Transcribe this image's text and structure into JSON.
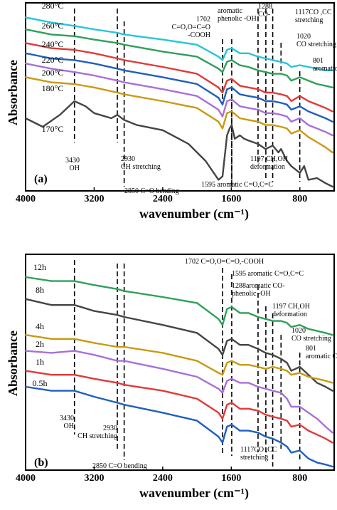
{
  "chart_data": [
    {
      "type": "line",
      "panel_label": "(a)",
      "xlabel": "wavenumber (cm⁻¹)",
      "ylabel": "Absorbance",
      "xlim": [
        4000,
        400
      ],
      "xticks": [
        "4000",
        "3200",
        "2400",
        "1600",
        "800"
      ],
      "tick_values": [
        4000,
        3200,
        2400,
        1600,
        800
      ],
      "series": [
        {
          "name": "280°C",
          "color": "#26c6da",
          "x": [
            4000,
            3700,
            3430,
            3200,
            2930,
            2850,
            2400,
            2000,
            1750,
            1702,
            1650,
            1595,
            1500,
            1400,
            1288,
            1200,
            1117,
            1020,
            950,
            900,
            801,
            700,
            600,
            500,
            420
          ],
          "y": [
            0.99,
            0.96,
            0.94,
            0.92,
            0.9,
            0.89,
            0.86,
            0.83,
            0.76,
            0.74,
            0.8,
            0.81,
            0.78,
            0.78,
            0.76,
            0.75,
            0.74,
            0.73,
            0.72,
            0.7,
            0.71,
            0.7,
            0.69,
            0.68,
            0.68
          ]
        },
        {
          "name": "260°C",
          "color": "#2ea05a",
          "x": [
            4000,
            3700,
            3430,
            3200,
            2930,
            2850,
            2400,
            2000,
            1750,
            1702,
            1650,
            1595,
            1500,
            1400,
            1288,
            1200,
            1117,
            1020,
            950,
            900,
            801,
            700,
            600,
            500,
            420
          ],
          "y": [
            0.92,
            0.89,
            0.88,
            0.86,
            0.84,
            0.83,
            0.79,
            0.76,
            0.69,
            0.67,
            0.73,
            0.74,
            0.71,
            0.7,
            0.68,
            0.67,
            0.66,
            0.66,
            0.65,
            0.62,
            0.64,
            0.62,
            0.6,
            0.59,
            0.58
          ]
        },
        {
          "name": "240°C",
          "color": "#e03a3a",
          "x": [
            4000,
            3700,
            3430,
            3200,
            2930,
            2850,
            2400,
            2000,
            1750,
            1702,
            1650,
            1595,
            1500,
            1400,
            1288,
            1200,
            1117,
            1020,
            950,
            900,
            801,
            700,
            600,
            500,
            420
          ],
          "y": [
            0.84,
            0.81,
            0.8,
            0.78,
            0.75,
            0.74,
            0.7,
            0.66,
            0.58,
            0.55,
            0.62,
            0.63,
            0.59,
            0.58,
            0.57,
            0.55,
            0.55,
            0.54,
            0.53,
            0.5,
            0.53,
            0.5,
            0.48,
            0.46,
            0.44
          ]
        },
        {
          "name": "220°C",
          "color": "#1f5fbf",
          "x": [
            4000,
            3700,
            3430,
            3200,
            2930,
            2850,
            2400,
            2000,
            1750,
            1702,
            1650,
            1595,
            1500,
            1400,
            1288,
            1200,
            1117,
            1020,
            950,
            900,
            801,
            700,
            600,
            500,
            420
          ],
          "y": [
            0.78,
            0.75,
            0.74,
            0.72,
            0.69,
            0.68,
            0.64,
            0.6,
            0.52,
            0.48,
            0.57,
            0.58,
            0.54,
            0.53,
            0.52,
            0.5,
            0.5,
            0.49,
            0.48,
            0.45,
            0.47,
            0.44,
            0.42,
            0.4,
            0.38
          ]
        },
        {
          "name": "200°C",
          "color": "#a870d8",
          "x": [
            4000,
            3700,
            3430,
            3200,
            2930,
            2850,
            2400,
            2000,
            1750,
            1702,
            1650,
            1595,
            1500,
            1400,
            1288,
            1200,
            1117,
            1020,
            950,
            900,
            801,
            700,
            600,
            500,
            420
          ],
          "y": [
            0.72,
            0.69,
            0.67,
            0.65,
            0.62,
            0.61,
            0.57,
            0.53,
            0.45,
            0.41,
            0.5,
            0.51,
            0.47,
            0.46,
            0.45,
            0.43,
            0.43,
            0.42,
            0.41,
            0.38,
            0.4,
            0.36,
            0.34,
            0.32,
            0.3
          ]
        },
        {
          "name": "180°C",
          "color": "#c99a10",
          "x": [
            4000,
            3700,
            3430,
            3200,
            2930,
            2850,
            2400,
            2000,
            1750,
            1702,
            1650,
            1595,
            1500,
            1400,
            1288,
            1200,
            1117,
            1020,
            950,
            900,
            801,
            700,
            600,
            500,
            420
          ],
          "y": [
            0.64,
            0.61,
            0.6,
            0.58,
            0.55,
            0.54,
            0.5,
            0.46,
            0.38,
            0.34,
            0.43,
            0.44,
            0.4,
            0.39,
            0.38,
            0.36,
            0.36,
            0.35,
            0.34,
            0.31,
            0.33,
            0.29,
            0.26,
            0.23,
            0.2
          ]
        },
        {
          "name": "170°C",
          "color": "#444444",
          "x": [
            4000,
            3800,
            3600,
            3430,
            3300,
            3200,
            3000,
            2930,
            2850,
            2700,
            2400,
            2100,
            1900,
            1750,
            1702,
            1650,
            1620,
            1595,
            1560,
            1500,
            1450,
            1400,
            1288,
            1200,
            1117,
            1050,
            1020,
            950,
            900,
            801,
            750,
            700,
            600,
            500,
            420
          ],
          "y": [
            0.4,
            0.35,
            0.42,
            0.5,
            0.47,
            0.43,
            0.4,
            0.42,
            0.39,
            0.36,
            0.33,
            0.25,
            0.15,
            0.04,
            0.06,
            0.3,
            0.34,
            0.36,
            0.28,
            0.3,
            0.28,
            0.27,
            0.25,
            0.22,
            0.24,
            0.2,
            0.22,
            0.15,
            0.12,
            0.08,
            0.12,
            0.04,
            0.05,
            0.02,
            0.0
          ]
        }
      ],
      "annotations": [
        {
          "lines": [
            "3430",
            "OH"
          ],
          "x": 3430
        },
        {
          "lines": [
            "2930",
            "CH stretching"
          ],
          "x": 2930
        },
        {
          "lines": [
            "2850 C=O bending"
          ],
          "x": 2850
        },
        {
          "lines": [
            "1702",
            "C=O,O=C=O",
            "-COOH"
          ],
          "x": 1702
        },
        {
          "lines": [
            "aromatic",
            "phenolic -OH"
          ],
          "x": 1595
        },
        {
          "lines": [
            "1288",
            "CO-"
          ],
          "x": 1288
        },
        {
          "lines": [
            "1117CO ,CC",
            "stretching"
          ],
          "x": 1117
        },
        {
          "lines": [
            "1020",
            "CO stretching"
          ],
          "x": 1020
        },
        {
          "lines": [
            "801",
            "aromatic CH"
          ],
          "x": 801
        },
        {
          "lines": [
            "1197 CH,OH",
            "deformation"
          ],
          "x": 1197
        },
        {
          "lines": [
            "1595 aromatic C=O,C=C"
          ],
          "x": 1595
        }
      ]
    },
    {
      "type": "line",
      "panel_label": "(b)",
      "xlabel": "wavenumber (cm⁻¹)",
      "ylabel": "Absorbance",
      "xlim": [
        4000,
        400
      ],
      "xticks": [
        "4000",
        "3200",
        "2400",
        "1600",
        "800"
      ],
      "tick_values": [
        4000,
        3200,
        2400,
        1600,
        800
      ],
      "series": [
        {
          "name": "12h",
          "color": "#2ea05a",
          "x": [
            4000,
            3700,
            3430,
            3200,
            2930,
            2850,
            2400,
            2000,
            1750,
            1702,
            1650,
            1595,
            1500,
            1400,
            1288,
            1200,
            1117,
            1020,
            950,
            900,
            801,
            700,
            600,
            500,
            420
          ],
          "y": [
            0.95,
            0.93,
            0.93,
            0.91,
            0.89,
            0.88,
            0.85,
            0.82,
            0.74,
            0.71,
            0.79,
            0.8,
            0.77,
            0.77,
            0.75,
            0.74,
            0.73,
            0.73,
            0.72,
            0.7,
            0.71,
            0.69,
            0.68,
            0.67,
            0.66
          ]
        },
        {
          "name": "8h",
          "color": "#444444",
          "x": [
            4000,
            3700,
            3430,
            3200,
            2930,
            2850,
            2400,
            2000,
            1750,
            1702,
            1650,
            1595,
            1500,
            1400,
            1288,
            1200,
            1117,
            1020,
            950,
            900,
            801,
            700,
            600,
            500,
            420
          ],
          "y": [
            0.84,
            0.81,
            0.81,
            0.78,
            0.76,
            0.75,
            0.71,
            0.67,
            0.59,
            0.56,
            0.63,
            0.64,
            0.61,
            0.61,
            0.59,
            0.57,
            0.56,
            0.54,
            0.52,
            0.48,
            0.5,
            0.46,
            0.42,
            0.4,
            0.38
          ]
        },
        {
          "name": "4h",
          "color": "#c99a10",
          "x": [
            4000,
            3700,
            3430,
            3200,
            2930,
            2850,
            2400,
            2000,
            1750,
            1702,
            1650,
            1595,
            1500,
            1400,
            1288,
            1200,
            1117,
            1020,
            950,
            900,
            801,
            700,
            600,
            500,
            420
          ],
          "y": [
            0.66,
            0.64,
            0.64,
            0.62,
            0.6,
            0.6,
            0.57,
            0.53,
            0.47,
            0.46,
            0.52,
            0.53,
            0.51,
            0.51,
            0.5,
            0.49,
            0.5,
            0.49,
            0.48,
            0.46,
            0.47,
            0.45,
            0.44,
            0.43,
            0.42
          ]
        },
        {
          "name": "2h",
          "color": "#a870d8",
          "x": [
            4000,
            3700,
            3430,
            3200,
            2930,
            2850,
            2400,
            2000,
            1750,
            1702,
            1650,
            1595,
            1500,
            1400,
            1288,
            1200,
            1117,
            1020,
            950,
            900,
            801,
            700,
            600,
            500,
            420
          ],
          "y": [
            0.58,
            0.57,
            0.58,
            0.56,
            0.53,
            0.53,
            0.49,
            0.45,
            0.39,
            0.37,
            0.43,
            0.44,
            0.42,
            0.42,
            0.4,
            0.39,
            0.38,
            0.37,
            0.34,
            0.3,
            0.3,
            0.27,
            0.24,
            0.2,
            0.17
          ]
        },
        {
          "name": "1h",
          "color": "#e03a3a",
          "x": [
            4000,
            3700,
            3430,
            3200,
            2930,
            2850,
            2400,
            2000,
            1750,
            1702,
            1650,
            1595,
            1500,
            1400,
            1288,
            1200,
            1117,
            1020,
            950,
            900,
            801,
            700,
            600,
            500,
            420
          ],
          "y": [
            0.48,
            0.46,
            0.46,
            0.44,
            0.42,
            0.41,
            0.38,
            0.34,
            0.27,
            0.24,
            0.31,
            0.32,
            0.29,
            0.29,
            0.28,
            0.26,
            0.25,
            0.24,
            0.23,
            0.2,
            0.21,
            0.18,
            0.16,
            0.14,
            0.12
          ]
        },
        {
          "name": "0.5h",
          "color": "#1f5fbf",
          "x": [
            4000,
            3700,
            3430,
            3200,
            2930,
            2850,
            2400,
            2000,
            1750,
            1702,
            1650,
            1595,
            1500,
            1400,
            1288,
            1200,
            1117,
            1020,
            950,
            900,
            801,
            700,
            600,
            500,
            420
          ],
          "y": [
            0.4,
            0.38,
            0.38,
            0.35,
            0.32,
            0.31,
            0.27,
            0.23,
            0.15,
            0.12,
            0.2,
            0.21,
            0.18,
            0.18,
            0.17,
            0.15,
            0.14,
            0.12,
            0.1,
            0.07,
            0.08,
            0.04,
            0.02,
            0.01,
            0.0
          ]
        }
      ],
      "annotations": [
        {
          "lines": [
            "3430",
            "OH"
          ],
          "x": 3430
        },
        {
          "lines": [
            "2930",
            "CH stretching"
          ],
          "x": 2930
        },
        {
          "lines": [
            "2850 C=O bending"
          ],
          "x": 2850
        },
        {
          "lines": [
            "1702 C=O,O=C=O,-COOH"
          ],
          "x": 1702
        },
        {
          "lines": [
            "1595 aromatic C=O,C=C"
          ],
          "x": 1595
        },
        {
          "lines": [
            "1288aromatic CO-",
            "phenolic -OH"
          ],
          "x": 1288
        },
        {
          "lines": [
            "1197 CH,OH",
            "deformation"
          ],
          "x": 1197
        },
        {
          "lines": [
            "1020",
            "CO stretching"
          ],
          "x": 1020
        },
        {
          "lines": [
            "801",
            "aromatic CH"
          ],
          "x": 801
        },
        {
          "lines": [
            "1117CO ,CC",
            "stretching"
          ],
          "x": 1117
        }
      ]
    }
  ]
}
